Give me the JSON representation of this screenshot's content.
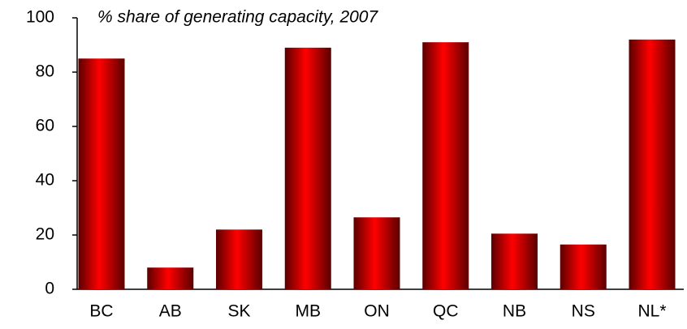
{
  "chart_data": {
    "type": "bar",
    "title": "% share of generating capacity, 2007",
    "categories": [
      "BC",
      "AB",
      "SK",
      "MB",
      "ON",
      "QC",
      "NB",
      "NS",
      "NL*"
    ],
    "values": [
      85,
      8,
      22,
      89,
      26.5,
      91,
      20.5,
      16.5,
      92
    ],
    "color": "#ff0000",
    "ylim": [
      0,
      100
    ],
    "yticks": [
      0,
      20,
      40,
      60,
      80,
      100
    ],
    "grid": false
  }
}
